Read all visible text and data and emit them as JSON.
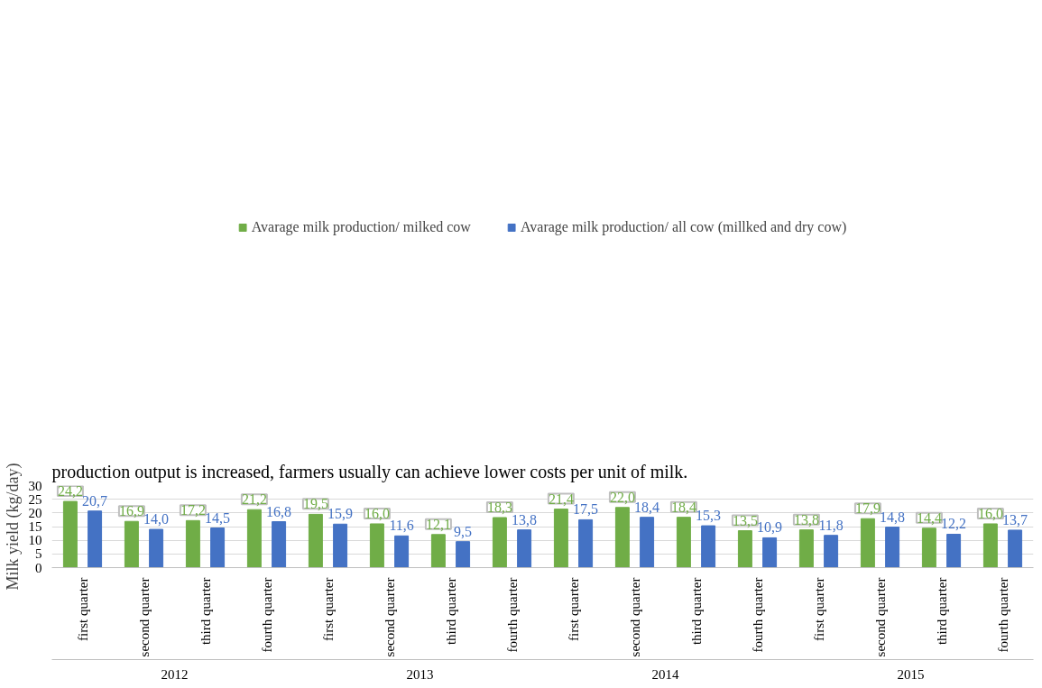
{
  "chart_data": {
    "type": "bar",
    "title": "production output is increased, farmers usually can achieve lower costs per unit of milk.",
    "ylabel": "Milk yield (kg/day)",
    "categories": [
      "first quarter",
      "second quarter",
      "third quarter",
      "fourth quarter",
      "first quarter",
      "second quarter",
      "third quarter",
      "fourth quarter",
      "first quarter",
      "second quarter",
      "third quarter",
      "fourth quarter",
      "first quarter",
      "second quarter",
      "third quarter",
      "fourth quarter"
    ],
    "annotations": [
      "2012",
      "2013",
      "2014",
      "2015"
    ],
    "series": [
      {
        "name": "Avarage milk production/ milked cow",
        "color": "#70ad47",
        "values": [
          24.2,
          16.9,
          17.2,
          21.2,
          19.5,
          16.0,
          12.1,
          18.3,
          21.4,
          22.0,
          18.4,
          13.5,
          13.8,
          17.9,
          14.4,
          16.0
        ],
        "value_labels": [
          "24,2",
          "16,9",
          "17,2",
          "21,2",
          "19,5",
          "16,0",
          "12,1",
          "18,3",
          "21,4",
          "22,0",
          "18,4",
          "13,5",
          "13,8",
          "17,9",
          "14,4",
          "16,0"
        ]
      },
      {
        "name": "Avarage milk production/ all cow (millked and dry cow)",
        "color": "#4472c4",
        "values": [
          20.7,
          14.0,
          14.5,
          16.8,
          15.9,
          11.6,
          9.5,
          13.8,
          17.5,
          18.4,
          15.3,
          10.9,
          11.8,
          14.8,
          12.2,
          13.7
        ],
        "value_labels": [
          "20,7",
          "14,0",
          "14,5",
          "16,8",
          "15,9",
          "11,6",
          "9,5",
          "13,8",
          "17,5",
          "18,4",
          "15,3",
          "10,9",
          "11,8",
          "14,8",
          "12,2",
          "13,7"
        ]
      }
    ],
    "ylim": [
      0,
      30
    ],
    "yticks": [
      0,
      5,
      10,
      15,
      20,
      25,
      30
    ],
    "grid": "y",
    "legend": "top"
  }
}
